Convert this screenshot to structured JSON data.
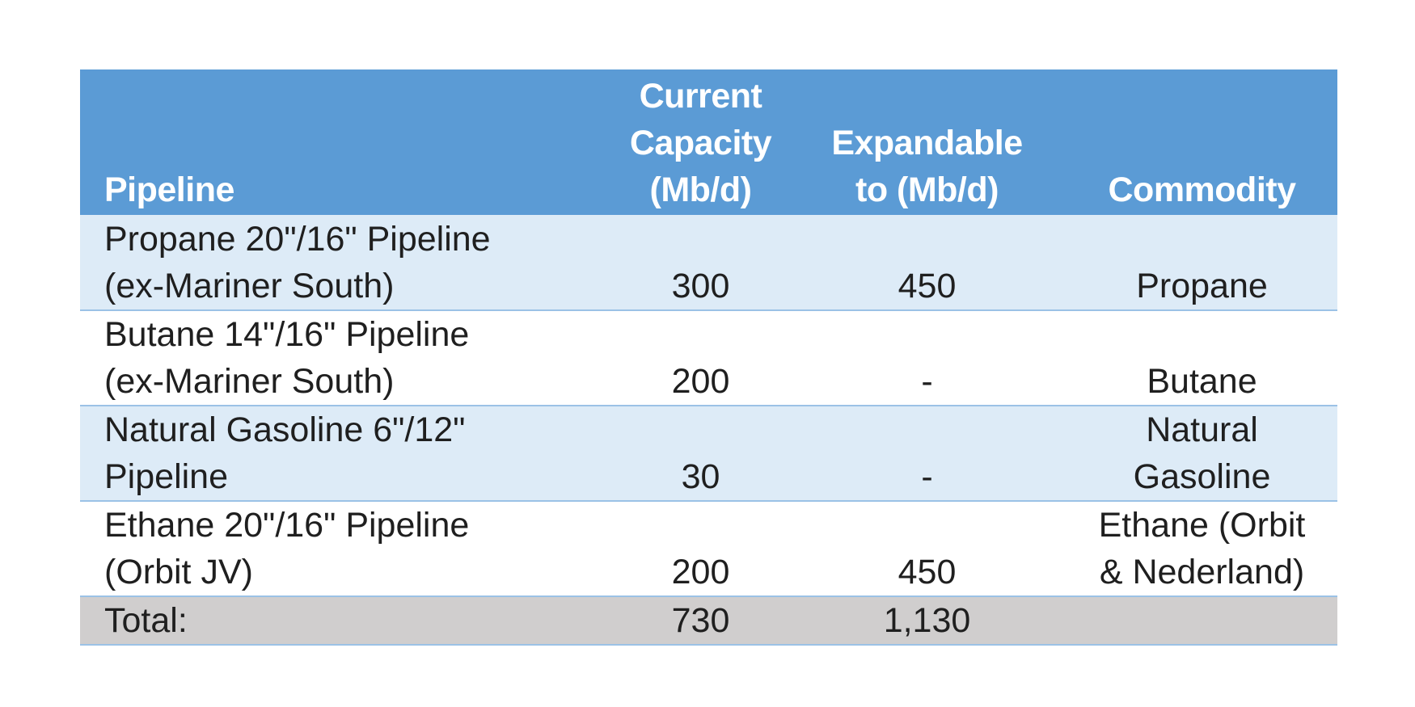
{
  "table": {
    "headers": [
      [
        "Pipeline"
      ],
      [
        "Current",
        "Capacity",
        "(Mb/d)"
      ],
      [
        "Expandable",
        "to (Mb/d)"
      ],
      [
        "Commodity"
      ]
    ],
    "rows": [
      {
        "pipeline": [
          "Propane 20\"/16\" Pipeline",
          "(ex-Mariner South)"
        ],
        "current_capacity": "300",
        "expandable": "450",
        "commodity": [
          "Propane"
        ]
      },
      {
        "pipeline": [
          "Butane 14\"/16\" Pipeline",
          "(ex-Mariner South)"
        ],
        "current_capacity": "200",
        "expandable": "-",
        "commodity": [
          "Butane"
        ]
      },
      {
        "pipeline": [
          "Natural Gasoline 6\"/12\"",
          "Pipeline"
        ],
        "current_capacity": "30",
        "expandable": "-",
        "commodity": [
          "Natural",
          "Gasoline"
        ]
      },
      {
        "pipeline": [
          "Ethane 20\"/16\" Pipeline",
          "(Orbit JV)"
        ],
        "current_capacity": "200",
        "expandable": "450",
        "commodity": [
          "Ethane (Orbit",
          "& Nederland)"
        ]
      }
    ],
    "total": {
      "label": "Total:",
      "current_capacity": "730",
      "expandable": "1,130",
      "commodity": ""
    }
  },
  "colors": {
    "header_bg": "#5b9bd5",
    "band_light": "#ddebf7",
    "total_bg": "#d0cece",
    "row_border": "#9bc2e6"
  }
}
